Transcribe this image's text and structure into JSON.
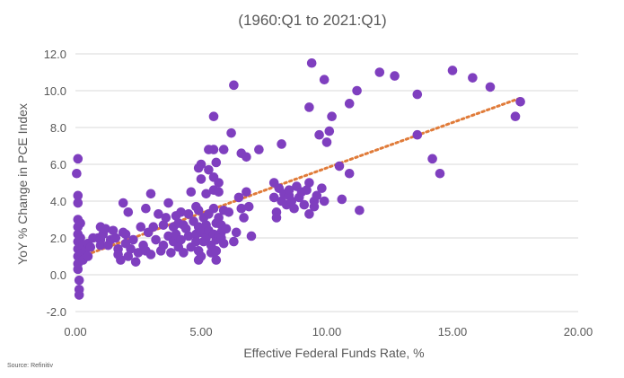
{
  "chart_data": {
    "type": "scatter",
    "title": "",
    "subtitle": "(1960:Q1 to 2021:Q1)",
    "xlabel": "Effective Federal Funds Rate, %",
    "ylabel": "YoY % Change in PCE Index",
    "source": "Source: Refinitiv",
    "xlim": [
      0,
      20
    ],
    "ylim": [
      -2,
      12
    ],
    "x_ticks": [
      "0.00",
      "5.00",
      "10.00",
      "15.00",
      "20.00"
    ],
    "y_ticks": [
      "-2.0",
      "0.0",
      "2.0",
      "4.0",
      "6.0",
      "8.0",
      "10.0",
      "12.0"
    ],
    "grid": "horizontal",
    "legend": "none",
    "point_color": "#7f3fbf",
    "trendline": {
      "style": "dotted",
      "color": "#e07b39",
      "x": [
        0.05,
        17.7
      ],
      "y": [
        0.9,
        9.6
      ]
    },
    "points": [
      [
        0.1,
        6.3
      ],
      [
        0.05,
        5.5
      ],
      [
        0.1,
        4.3
      ],
      [
        0.1,
        3.9
      ],
      [
        0.1,
        3.0
      ],
      [
        0.1,
        2.6
      ],
      [
        0.1,
        2.2
      ],
      [
        0.1,
        1.8
      ],
      [
        0.1,
        1.4
      ],
      [
        0.1,
        1.0
      ],
      [
        0.1,
        0.6
      ],
      [
        0.1,
        0.3
      ],
      [
        0.15,
        -0.3
      ],
      [
        0.15,
        -0.8
      ],
      [
        0.15,
        -1.1
      ],
      [
        0.2,
        2.8
      ],
      [
        0.2,
        2.0
      ],
      [
        0.2,
        1.5
      ],
      [
        0.25,
        1.2
      ],
      [
        0.3,
        1.6
      ],
      [
        0.3,
        0.8
      ],
      [
        0.4,
        1.3
      ],
      [
        0.5,
        1.7
      ],
      [
        0.5,
        1.0
      ],
      [
        0.6,
        1.5
      ],
      [
        0.7,
        2.0
      ],
      [
        0.9,
        2.0
      ],
      [
        1.0,
        1.9
      ],
      [
        1.0,
        1.6
      ],
      [
        1.0,
        2.6
      ],
      [
        1.1,
        2.2
      ],
      [
        1.2,
        2.5
      ],
      [
        1.3,
        1.6
      ],
      [
        1.4,
        1.9
      ],
      [
        1.5,
        2.4
      ],
      [
        1.6,
        2.0
      ],
      [
        1.7,
        1.4
      ],
      [
        1.7,
        1.1
      ],
      [
        1.8,
        0.8
      ],
      [
        1.9,
        2.3
      ],
      [
        1.9,
        3.9
      ],
      [
        2.0,
        2.2
      ],
      [
        2.0,
        1.7
      ],
      [
        2.1,
        1.0
      ],
      [
        2.1,
        3.4
      ],
      [
        2.2,
        1.4
      ],
      [
        2.3,
        1.9
      ],
      [
        2.4,
        0.7
      ],
      [
        2.5,
        1.2
      ],
      [
        2.6,
        2.6
      ],
      [
        2.7,
        1.6
      ],
      [
        2.8,
        1.3
      ],
      [
        2.8,
        3.6
      ],
      [
        2.9,
        2.3
      ],
      [
        3.0,
        1.1
      ],
      [
        3.0,
        4.4
      ],
      [
        3.1,
        2.6
      ],
      [
        3.2,
        1.9
      ],
      [
        3.3,
        3.3
      ],
      [
        3.4,
        1.3
      ],
      [
        3.5,
        2.7
      ],
      [
        3.5,
        1.6
      ],
      [
        3.6,
        3.1
      ],
      [
        3.7,
        2.1
      ],
      [
        3.7,
        3.9
      ],
      [
        3.8,
        1.2
      ],
      [
        3.9,
        2.6
      ],
      [
        3.9,
        1.8
      ],
      [
        4.0,
        3.2
      ],
      [
        4.0,
        2.2
      ],
      [
        4.1,
        2.8
      ],
      [
        4.1,
        1.5
      ],
      [
        4.2,
        1.9
      ],
      [
        4.2,
        3.4
      ],
      [
        4.3,
        2.7
      ],
      [
        4.3,
        1.2
      ],
      [
        4.4,
        2.5
      ],
      [
        4.5,
        3.3
      ],
      [
        4.5,
        2.1
      ],
      [
        4.6,
        1.5
      ],
      [
        4.6,
        4.5
      ],
      [
        4.7,
        2.9
      ],
      [
        4.8,
        3.7
      ],
      [
        4.8,
        2.2
      ],
      [
        4.8,
        1.8
      ],
      [
        4.9,
        3.5
      ],
      [
        4.9,
        2.6
      ],
      [
        4.9,
        1.3
      ],
      [
        4.9,
        0.8
      ],
      [
        5.0,
        5.2
      ],
      [
        5.0,
        2.3
      ],
      [
        5.0,
        1.0
      ],
      [
        5.1,
        3.1
      ],
      [
        5.1,
        1.8
      ],
      [
        5.2,
        4.4
      ],
      [
        5.2,
        2.7
      ],
      [
        5.2,
        2.0
      ],
      [
        5.3,
        6.8
      ],
      [
        5.3,
        5.7
      ],
      [
        5.3,
        3.3
      ],
      [
        5.3,
        2.4
      ],
      [
        5.4,
        1.6
      ],
      [
        5.4,
        1.2
      ],
      [
        5.5,
        8.6
      ],
      [
        5.5,
        6.8
      ],
      [
        5.5,
        5.3
      ],
      [
        5.5,
        4.6
      ],
      [
        5.5,
        3.6
      ],
      [
        5.5,
        2.2
      ],
      [
        5.6,
        2.8
      ],
      [
        5.6,
        1.9
      ],
      [
        5.6,
        1.3
      ],
      [
        5.6,
        0.8
      ],
      [
        5.7,
        4.5
      ],
      [
        5.7,
        2.1
      ],
      [
        5.7,
        3.1
      ],
      [
        5.8,
        2.7
      ],
      [
        5.8,
        2.3
      ],
      [
        5.8,
        2.0
      ],
      [
        5.9,
        6.8
      ],
      [
        5.9,
        3.5
      ],
      [
        5.9,
        1.7
      ],
      [
        6.0,
        2.5
      ],
      [
        6.1,
        3.4
      ],
      [
        6.2,
        7.7
      ],
      [
        6.3,
        10.3
      ],
      [
        6.3,
        1.8
      ],
      [
        6.4,
        2.3
      ],
      [
        6.5,
        4.2
      ],
      [
        6.6,
        6.6
      ],
      [
        6.6,
        3.6
      ],
      [
        6.7,
        3.1
      ],
      [
        6.8,
        6.4
      ],
      [
        6.8,
        4.5
      ],
      [
        6.9,
        3.7
      ],
      [
        7.0,
        2.1
      ],
      [
        7.3,
        6.8
      ],
      [
        5.0,
        6.0
      ],
      [
        4.9,
        5.8
      ],
      [
        5.6,
        6.1
      ],
      [
        5.7,
        5.0
      ],
      [
        7.9,
        5.0
      ],
      [
        7.9,
        4.2
      ],
      [
        8.0,
        3.4
      ],
      [
        8.0,
        3.1
      ],
      [
        8.1,
        4.7
      ],
      [
        8.2,
        4.0
      ],
      [
        8.2,
        7.1
      ],
      [
        8.3,
        4.4
      ],
      [
        8.4,
        3.8
      ],
      [
        8.5,
        4.3
      ],
      [
        8.6,
        4.0
      ],
      [
        8.7,
        3.6
      ],
      [
        8.8,
        4.8
      ],
      [
        8.9,
        4.2
      ],
      [
        9.0,
        4.5
      ],
      [
        9.1,
        3.8
      ],
      [
        9.2,
        4.6
      ],
      [
        9.3,
        5.0
      ],
      [
        9.3,
        3.3
      ],
      [
        9.3,
        9.1
      ],
      [
        9.4,
        11.5
      ],
      [
        9.5,
        4.0
      ],
      [
        9.5,
        3.7
      ],
      [
        9.6,
        4.3
      ],
      [
        9.7,
        7.6
      ],
      [
        9.8,
        4.7
      ],
      [
        9.9,
        10.6
      ],
      [
        9.9,
        4.0
      ],
      [
        10.0,
        7.2
      ],
      [
        10.1,
        7.8
      ],
      [
        10.2,
        8.6
      ],
      [
        10.5,
        5.9
      ],
      [
        10.6,
        4.1
      ],
      [
        10.9,
        5.5
      ],
      [
        10.9,
        9.3
      ],
      [
        11.2,
        10.0
      ],
      [
        11.3,
        3.5
      ],
      [
        12.1,
        11.0
      ],
      [
        12.7,
        10.8
      ],
      [
        13.6,
        9.8
      ],
      [
        13.6,
        7.6
      ],
      [
        14.2,
        6.3
      ],
      [
        14.5,
        5.5
      ],
      [
        15.0,
        11.1
      ],
      [
        15.8,
        10.7
      ],
      [
        16.5,
        10.2
      ],
      [
        17.5,
        8.6
      ],
      [
        17.7,
        9.4
      ],
      [
        8.5,
        4.6
      ]
    ]
  }
}
